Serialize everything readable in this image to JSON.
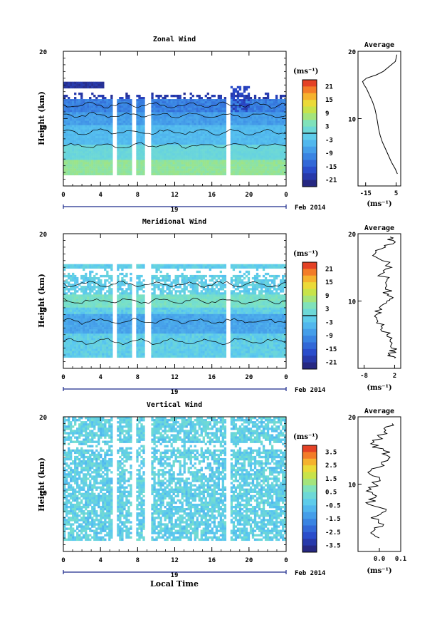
{
  "chart_data": [
    {
      "type": "heatmap",
      "title": "Zonal Wind",
      "ylabel": "Height (km)",
      "ylim": [
        0,
        20
      ],
      "y_ticks": [
        "20",
        "10"
      ],
      "x_ticks": [
        "0",
        "4",
        "8",
        "12",
        "16",
        "20",
        "0"
      ],
      "xlim": [
        0,
        24
      ],
      "date_label": "19",
      "date_suffix": "Feb 2014",
      "colorbar_unit": "(ms⁻¹)",
      "colorbar_ticks": [
        "21",
        "15",
        "9",
        "3",
        "-3",
        "-9",
        "-15",
        "-21"
      ],
      "colorbar_range": [
        -24,
        24
      ],
      "data_gaps_hours": [
        [
          5.4,
          5.8
        ],
        [
          7.4,
          7.8
        ],
        [
          8.8,
          9.5
        ],
        [
          17.6,
          18.0
        ]
      ],
      "profile": {
        "title": "Average",
        "x_ticks": [
          "-15",
          "5"
        ],
        "xlim": [
          -20,
          8
        ],
        "xlabel": "(ms⁻¹)",
        "y_ticks": [
          "20",
          "10"
        ],
        "height_km": [
          1.8,
          2.5,
          3.5,
          4.5,
          5.5,
          6.5,
          7.5,
          8.5,
          9.5,
          10.5,
          11.5,
          12.5,
          13.5,
          14.5,
          15.0,
          15.5,
          16.0,
          16.5,
          17.0,
          18.5,
          19.5
        ],
        "wind": [
          5.8,
          4.5,
          2.0,
          0.0,
          -2.0,
          -4.0,
          -5.5,
          -6.5,
          -7.2,
          -8.0,
          -9.0,
          -10.5,
          -12.5,
          -14.5,
          -16.0,
          -17.0,
          -14.5,
          -8.0,
          -3.5,
          4.5,
          5.5
        ]
      }
    },
    {
      "type": "heatmap",
      "title": "Meridional Wind",
      "ylabel": "Height (km)",
      "ylim": [
        0,
        20
      ],
      "y_ticks": [
        "20",
        "10"
      ],
      "x_ticks": [
        "0",
        "4",
        "8",
        "12",
        "16",
        "20",
        "0"
      ],
      "xlim": [
        0,
        24
      ],
      "date_label": "19",
      "date_suffix": "Feb 2014",
      "colorbar_unit": "(ms⁻¹)",
      "colorbar_ticks": [
        "21",
        "15",
        "9",
        "3",
        "-3",
        "-9",
        "-15",
        "-21"
      ],
      "colorbar_range": [
        -24,
        24
      ],
      "data_gaps_hours": [
        [
          5.4,
          5.8
        ],
        [
          7.4,
          7.8
        ],
        [
          8.8,
          9.5
        ],
        [
          17.6,
          18.0
        ]
      ],
      "profile": {
        "title": "Average",
        "x_ticks": [
          "-8",
          "2"
        ],
        "xlim": [
          -10,
          4
        ],
        "xlabel": "(ms⁻¹)",
        "y_ticks": [
          "20",
          "10"
        ],
        "height_km": [
          1.5,
          2.0,
          2.5,
          3.0,
          4.0,
          5.0,
          6.0,
          7.0,
          8.0,
          9.0,
          10.0,
          10.5,
          11.0,
          12.0,
          13.0,
          14.0,
          15.0,
          16.0,
          17.0,
          18.0,
          19.0,
          19.5
        ],
        "wind": [
          2.0,
          0.5,
          2.0,
          1.0,
          0.5,
          -0.5,
          -2.0,
          -3.5,
          -4.0,
          -3.0,
          -0.5,
          1.5,
          0.0,
          -1.0,
          -0.5,
          -2.5,
          1.0,
          -2.0,
          -4.5,
          -1.0,
          1.5,
          0.5
        ]
      }
    },
    {
      "type": "heatmap",
      "title": "Vertical Wind",
      "ylabel": "Height (km)",
      "xlabel": "Local Time",
      "ylim": [
        0,
        20
      ],
      "y_ticks": [
        "20",
        "10"
      ],
      "x_ticks": [
        "0",
        "4",
        "8",
        "12",
        "16",
        "20",
        "0"
      ],
      "xlim": [
        0,
        24
      ],
      "date_label": "19",
      "date_suffix": "Feb 2014",
      "colorbar_unit": "(ms⁻¹)",
      "colorbar_ticks": [
        "3.5",
        "2.5",
        "1.5",
        "0.5",
        "-0.5",
        "-1.5",
        "-2.5",
        "-3.5"
      ],
      "colorbar_range": [
        -4,
        4
      ],
      "data_gaps_hours": [
        [
          5.4,
          5.8
        ],
        [
          7.4,
          7.8
        ],
        [
          8.8,
          9.5
        ],
        [
          17.6,
          18.0
        ]
      ],
      "profile": {
        "title": "Average",
        "x_ticks": [
          "0.0",
          "0.1"
        ],
        "xlim": [
          -0.1,
          0.1
        ],
        "xlabel": "(ms⁻¹)",
        "y_ticks": [
          "20",
          "10"
        ],
        "height_km": [
          2,
          3,
          4,
          5,
          6,
          7,
          8,
          9,
          10,
          11,
          12,
          13,
          14,
          15,
          16,
          17,
          18,
          19
        ],
        "wind": [
          0.0,
          -0.03,
          0.02,
          -0.04,
          0.03,
          -0.05,
          -0.02,
          -0.06,
          -0.02,
          0.0,
          -0.04,
          0.01,
          0.05,
          0.02,
          -0.04,
          0.0,
          0.03,
          0.06
        ]
      }
    }
  ]
}
